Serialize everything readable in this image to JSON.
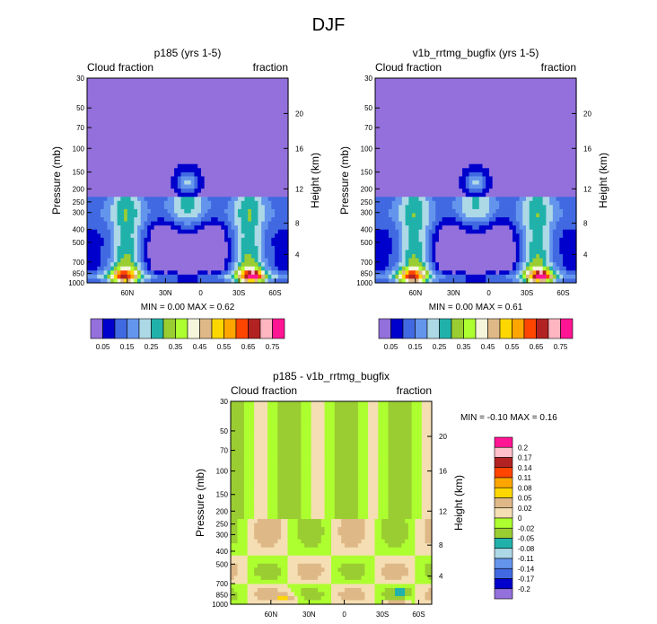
{
  "figure": {
    "title": "DJF"
  },
  "colors": {
    "abs_levels": [
      "#9370db",
      "#0000cd",
      "#4169e1",
      "#6495ed",
      "#add8e6",
      "#20b2aa",
      "#9acd32",
      "#adff2f",
      "#f5f5dc",
      "#deb887",
      "#ffd700",
      "#ffa500",
      "#ff4500",
      "#b22222",
      "#ffb6c1",
      "#ff1493"
    ],
    "diff_levels": [
      "#9370db",
      "#0000cd",
      "#4169e1",
      "#6495ed",
      "#add8e6",
      "#20b2aa",
      "#9acd32",
      "#adff2f",
      "#f5deb3",
      "#deb887",
      "#ffd700",
      "#ffa500",
      "#ff4500",
      "#b22222",
      "#ffc0cb",
      "#ff1493"
    ]
  },
  "chart_data": [
    {
      "type": "heatmap",
      "id": "p185",
      "title": "p185 (yrs 1-5)",
      "left_label": "Cloud fraction",
      "right_label": "fraction",
      "ylabel": "Pressure (mb)",
      "y2label": "Height (km)",
      "ylim": [
        1000,
        30
      ],
      "yticks": [
        "30",
        "50",
        "70",
        "100",
        "150",
        "200",
        "250",
        "300",
        "400",
        "500",
        "700",
        "850",
        "1000"
      ],
      "y2ticks": [
        "20",
        "16",
        "12",
        "8",
        "4"
      ],
      "xticks": [
        "60N",
        "30N",
        "0",
        "30S",
        "60S"
      ],
      "stats": {
        "min_label": "MIN =",
        "min": "0.00",
        "max_label": "MAX =",
        "max": "0.62"
      },
      "colorbar_labels": [
        "0.05",
        "0.15",
        "0.25",
        "0.35",
        "0.45",
        "0.55",
        "0.65",
        "0.75"
      ]
    },
    {
      "type": "heatmap",
      "id": "v1b",
      "title": "v1b_rrtmg_bugfix (yrs 1-5)",
      "left_label": "Cloud fraction",
      "right_label": "fraction",
      "ylabel": "Pressure (mb)",
      "y2label": "Height (km)",
      "ylim": [
        1000,
        30
      ],
      "yticks": [
        "30",
        "50",
        "70",
        "100",
        "150",
        "200",
        "250",
        "300",
        "400",
        "500",
        "700",
        "850",
        "1000"
      ],
      "y2ticks": [
        "20",
        "16",
        "12",
        "8",
        "4"
      ],
      "xticks": [
        "60N",
        "30N",
        "0",
        "30S",
        "60S"
      ],
      "stats": {
        "min_label": "MIN =",
        "min": "0.00",
        "max_label": "MAX =",
        "max": "0.61"
      },
      "colorbar_labels": [
        "0.05",
        "0.15",
        "0.25",
        "0.35",
        "0.45",
        "0.55",
        "0.65",
        "0.75"
      ]
    },
    {
      "type": "heatmap",
      "id": "diff",
      "title": "p185 - v1b_rrtmg_bugfix",
      "left_label": "Cloud fraction",
      "right_label": "fraction",
      "ylabel": "Pressure (mb)",
      "y2label": "Height (km)",
      "ylim": [
        1000,
        30
      ],
      "yticks": [
        "30",
        "50",
        "70",
        "100",
        "150",
        "200",
        "250",
        "300",
        "400",
        "500",
        "700",
        "850",
        "1000"
      ],
      "y2ticks": [
        "20",
        "16",
        "12",
        "8",
        "4"
      ],
      "xticks": [
        "60N",
        "30N",
        "0",
        "30S",
        "60S"
      ],
      "stats": {
        "min_label": "MIN =",
        "min": "-0.10",
        "max_label": "MAX =",
        "max": "0.16"
      },
      "colorbar_labels": [
        "0.2",
        "0.17",
        "0.14",
        "0.11",
        "0.08",
        "0.05",
        "0.02",
        "0",
        "-0.02",
        "-0.05",
        "-0.08",
        "-0.11",
        "-0.14",
        "-0.17",
        "-0.2"
      ]
    }
  ]
}
